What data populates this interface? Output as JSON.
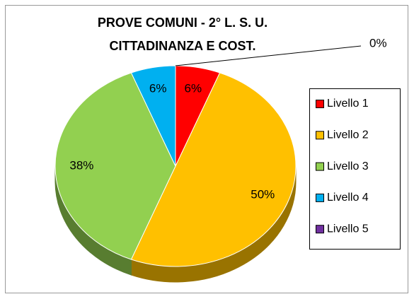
{
  "chart_data": {
    "type": "pie3d",
    "title_lines": [
      "PROVE COMUNI  - 2° L. S. U.",
      "CITTADINANZA E COST."
    ],
    "categories": [
      "Livello 1",
      "Livello 2",
      "Livello 3",
      "Livello 4",
      "Livello 5"
    ],
    "values": [
      6,
      50,
      38,
      6,
      0
    ],
    "value_labels": [
      "6%",
      "50%",
      "38%",
      "6%",
      "0%"
    ],
    "colors": [
      "#ff0000",
      "#ffc000",
      "#92d050",
      "#00b0f0",
      "#7030a0"
    ],
    "legend": "right"
  }
}
